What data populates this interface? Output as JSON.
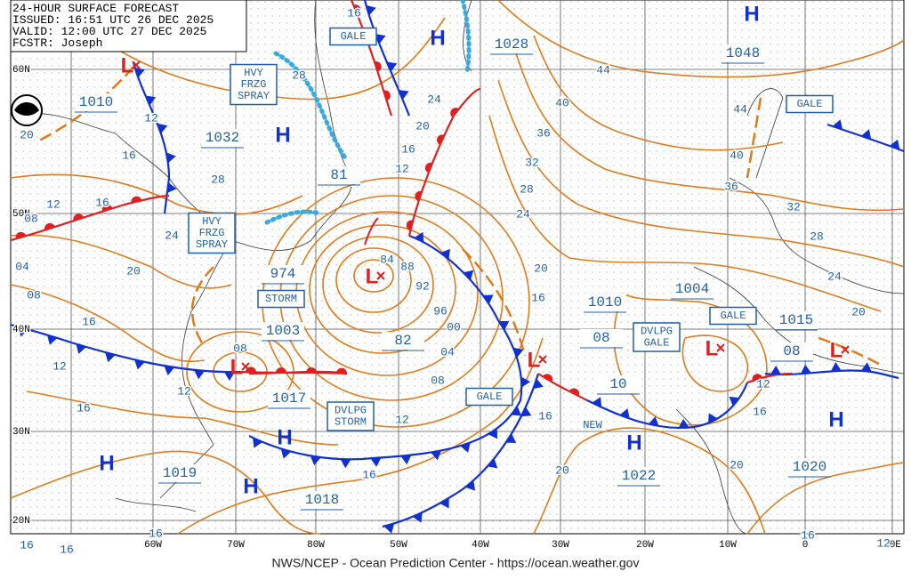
{
  "header": {
    "lines": [
      "24-HOUR SURFACE FORECAST",
      "ISSUED: 16:51 UTC 26 DEC 2025",
      "VALID:  12:00 UTC 27 DEC 2025",
      "FCSTR:  Joseph"
    ]
  },
  "footer": "NWS/NCEP - Ocean Prediction Center - https://ocean.weather.gov",
  "grid": {
    "lat_labels": [
      "60N",
      "50N",
      "40N",
      "30N",
      "20N"
    ],
    "lon_labels": [
      "60W",
      "70W",
      "80W",
      "50W",
      "40W",
      "30W",
      "20W",
      "10W",
      "0",
      "10E"
    ]
  },
  "centers": {
    "highs": [
      "H",
      "H",
      "H",
      "H",
      "H",
      "H",
      "H",
      "H"
    ],
    "lows": [
      "L",
      "L",
      "L",
      "L",
      "L",
      "L"
    ]
  },
  "pressures": [
    "1010",
    "1032",
    "1028",
    "1048",
    "974",
    "1003",
    "1017",
    "1019",
    "1018",
    "1022",
    "1020",
    "1010",
    "1004",
    "1015",
    "82",
    "81",
    "08",
    "08",
    "10"
  ],
  "isobar_labels": [
    "16",
    "28",
    "12",
    "20",
    "16",
    "28",
    "12",
    "16",
    "08",
    "24",
    "04",
    "20",
    "08",
    "16",
    "12",
    "12",
    "08",
    "16",
    "16",
    "16",
    "16",
    "24",
    "20",
    "16",
    "12",
    "84",
    "88",
    "92",
    "96",
    "00",
    "04",
    "08",
    "12",
    "16",
    "44",
    "40",
    "36",
    "32",
    "28",
    "24",
    "20",
    "16",
    "16",
    "20",
    "44",
    "40",
    "36",
    "32",
    "28",
    "24",
    "20",
    "12",
    "16",
    "20",
    "16",
    "12"
  ],
  "warnings": [
    {
      "lines": [
        "GALE"
      ]
    },
    {
      "lines": [
        "HVY",
        "FRZG",
        "SPRAY"
      ]
    },
    {
      "lines": [
        "HVY",
        "FRZG",
        "SPRAY"
      ]
    },
    {
      "lines": [
        "STORM"
      ]
    },
    {
      "lines": [
        "DVLPG",
        "STORM"
      ]
    },
    {
      "lines": [
        "GALE"
      ]
    },
    {
      "lines": [
        "GALE"
      ]
    },
    {
      "lines": [
        "GALE"
      ]
    },
    {
      "lines": [
        "DVLPG",
        "GALE"
      ]
    }
  ],
  "notes": [
    "NEW"
  ]
}
